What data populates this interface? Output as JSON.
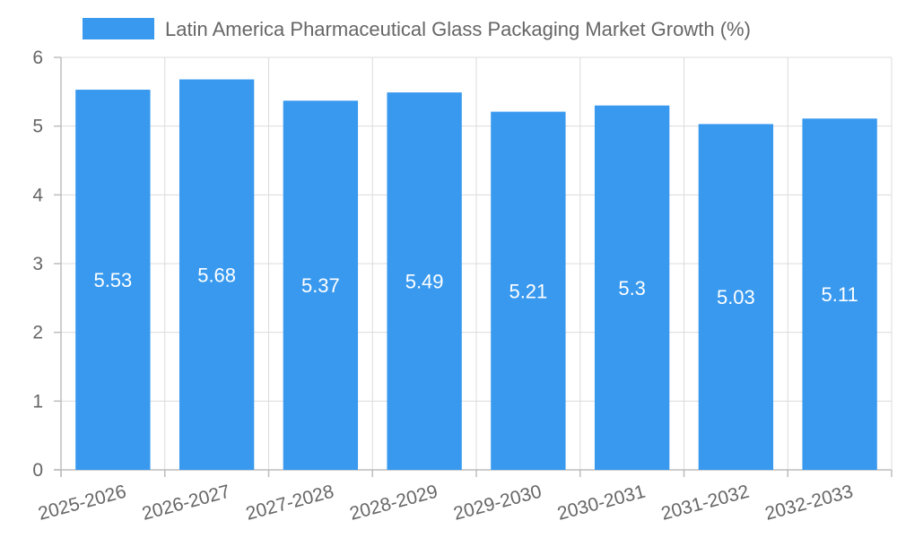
{
  "chart_data": {
    "type": "bar",
    "legend": "Latin America Pharmaceutical Glass Packaging Market Growth (%)",
    "series_color": "#3899ef",
    "categories": [
      "2025-2026",
      "2026-2027",
      "2027-2028",
      "2028-2029",
      "2029-2030",
      "2030-2031",
      "2031-2032",
      "2032-2033"
    ],
    "values": [
      5.53,
      5.68,
      5.37,
      5.49,
      5.21,
      5.3,
      5.03,
      5.11
    ],
    "data_labels": [
      "5.53",
      "5.68",
      "5.37",
      "5.49",
      "5.21",
      "5.3",
      "5.03",
      "5.11"
    ],
    "ylim": [
      0,
      6
    ],
    "yticks": [
      "0",
      "1",
      "2",
      "3",
      "4",
      "5",
      "6"
    ],
    "grid": true,
    "legend_position": "top-center"
  }
}
